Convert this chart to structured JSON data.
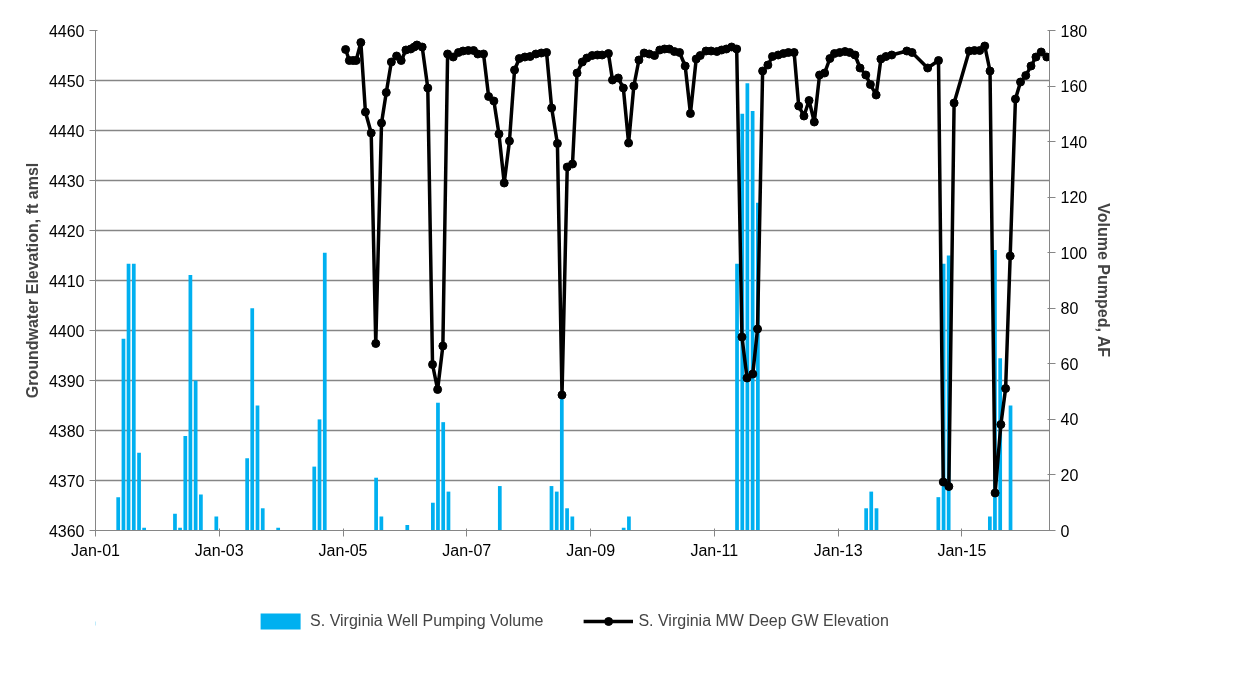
{
  "chart_data": {
    "type": "bar",
    "ylabel": "Groundwater Elevation, ft amsl",
    "y2label": "Volume Pumped, AF",
    "xlim": [
      "2001-01",
      "2016-06"
    ],
    "xticks": [
      {
        "value": "2001-01",
        "label": "Jan-01"
      },
      {
        "value": "2003-01",
        "label": "Jan-03"
      },
      {
        "value": "2005-01",
        "label": "Jan-05"
      },
      {
        "value": "2007-01",
        "label": "Jan-07"
      },
      {
        "value": "2009-01",
        "label": "Jan-09"
      },
      {
        "value": "2011-01",
        "label": "Jan-11"
      },
      {
        "value": "2013-01",
        "label": "Jan-13"
      },
      {
        "value": "2015-01",
        "label": "Jan-15"
      }
    ],
    "ylim": [
      4360,
      4460
    ],
    "yticks": [
      4360,
      4370,
      4380,
      4390,
      4400,
      4410,
      4420,
      4430,
      4440,
      4450,
      4460
    ],
    "y2lim": [
      0,
      180
    ],
    "y2ticks": [
      0,
      20,
      40,
      60,
      80,
      100,
      120,
      140,
      160,
      180
    ],
    "grid": "y",
    "legend": "bottom",
    "series": [
      {
        "name": "S. Virginia Well Pumping Volume",
        "axis": "y2",
        "color": "#00b0f0",
        "x": [
          "2001-05-15",
          "2001-06-15",
          "2001-07-15",
          "2001-08-15",
          "2001-09-15",
          "2001-10-15",
          "2002-04-15",
          "2002-05-15",
          "2002-06-15",
          "2002-07-15",
          "2002-08-15",
          "2002-09-15",
          "2002-12-15",
          "2003-06-15",
          "2003-07-15",
          "2003-08-15",
          "2003-09-15",
          "2003-12-15",
          "2004-07-15",
          "2004-08-15",
          "2004-09-15",
          "2005-07-15",
          "2005-08-15",
          "2006-01-15",
          "2006-06-15",
          "2006-07-15",
          "2006-08-15",
          "2006-09-15",
          "2007-07-15",
          "2008-05-15",
          "2008-06-15",
          "2008-07-15",
          "2008-08-15",
          "2008-09-15",
          "2009-07-15",
          "2009-08-15",
          "2011-05-15",
          "2011-06-15",
          "2011-07-15",
          "2011-08-15",
          "2011-09-15",
          "2013-06-15",
          "2013-07-15",
          "2013-08-15",
          "2014-08-15",
          "2014-09-15",
          "2014-10-15",
          "2015-06-15",
          "2015-07-15",
          "2015-08-15",
          "2015-09-15",
          "2015-10-15"
        ],
        "values": [
          12,
          69,
          96,
          96,
          28,
          1,
          6,
          1,
          34,
          92,
          54,
          13,
          5,
          26,
          80,
          45,
          8,
          1,
          23,
          40,
          100,
          19,
          5,
          2,
          10,
          46,
          39,
          14,
          16,
          16,
          14,
          48,
          8,
          5,
          1,
          5,
          96,
          150,
          161,
          151,
          118,
          8,
          14,
          8,
          12,
          96,
          99,
          5,
          101,
          62,
          null,
          45
        ]
      },
      {
        "name": "S. Virginia MW Deep GW Elevation",
        "type": "line",
        "color": "#000000",
        "marker": "circle",
        "line_style": "solid",
        "x": [
          "2005-01-16",
          "2005-02-07",
          "2005-03-01",
          "2005-03-19",
          "2005-04-16",
          "2005-05-13",
          "2005-06-16",
          "2005-07-13",
          "2005-08-16",
          "2005-09-13",
          "2005-10-13",
          "2005-11-13",
          "2005-12-10",
          "2006-01-07",
          "2006-02-04",
          "2006-02-25",
          "2006-03-13",
          "2006-04-13",
          "2006-05-16",
          "2006-06-13",
          "2006-07-13",
          "2006-08-13",
          "2006-09-10",
          "2006-10-13",
          "2006-11-13",
          "2006-12-10",
          "2007-01-10",
          "2007-02-10",
          "2007-03-07",
          "2007-04-10",
          "2007-05-10",
          "2007-06-10",
          "2007-07-10",
          "2007-08-10",
          "2007-09-10",
          "2007-10-10",
          "2007-11-07",
          "2007-12-10",
          "2008-01-10",
          "2008-02-13",
          "2008-03-16",
          "2008-04-16",
          "2008-05-16",
          "2008-06-19",
          "2008-07-16",
          "2008-08-16",
          "2008-09-16",
          "2008-10-13",
          "2008-11-13",
          "2008-12-10",
          "2009-01-10",
          "2009-02-10",
          "2009-03-10",
          "2009-04-16",
          "2009-05-10",
          "2009-06-13",
          "2009-07-13",
          "2009-08-13",
          "2009-09-13",
          "2009-10-13",
          "2009-11-13",
          "2009-12-13",
          "2010-01-13",
          "2010-02-13",
          "2010-03-13",
          "2010-04-10",
          "2010-05-10",
          "2010-06-10",
          "2010-07-13",
          "2010-08-13",
          "2010-09-16",
          "2010-10-10",
          "2010-11-13",
          "2010-12-13",
          "2011-01-16",
          "2011-02-13",
          "2011-03-13",
          "2011-04-13",
          "2011-05-13",
          "2011-06-13",
          "2011-07-13",
          "2011-08-16",
          "2011-09-13",
          "2011-10-13",
          "2011-11-13",
          "2011-12-10",
          "2012-01-13",
          "2012-02-13",
          "2012-03-13",
          "2012-04-16",
          "2012-05-13",
          "2012-06-13",
          "2012-07-13",
          "2012-08-13",
          "2012-09-13",
          "2012-10-13",
          "2012-11-13",
          "2012-12-10",
          "2013-01-10",
          "2013-02-10",
          "2013-03-10",
          "2013-04-10",
          "2013-05-10",
          "2013-06-13",
          "2013-07-10",
          "2013-08-13",
          "2013-09-10",
          "2013-10-10",
          "2013-11-13",
          "2014-02-10",
          "2014-03-13",
          "2014-06-13",
          "2014-08-16",
          "2014-09-13",
          "2014-10-16",
          "2014-11-16",
          "2015-02-13",
          "2015-03-16",
          "2015-04-16",
          "2015-05-16",
          "2015-06-16",
          "2015-07-16",
          "2015-08-19",
          "2015-09-16",
          "2015-10-13",
          "2015-11-13",
          "2015-12-13",
          "2016-01-13",
          "2016-02-13",
          "2016-03-13",
          "2016-04-13",
          "2016-05-16"
        ],
        "values": [
          4456.2,
          4454.0,
          4454.0,
          4454.0,
          4457.6,
          4443.7,
          4439.5,
          4397.4,
          4441.5,
          4447.6,
          4453.7,
          4454.9,
          4454.0,
          4456.1,
          4456.3,
          4456.7,
          4457.1,
          4456.7,
          4448.5,
          4393.2,
          4388.2,
          4396.9,
          4455.3,
          4454.7,
          4455.6,
          4455.9,
          4456.0,
          4456.0,
          4455.3,
          4455.3,
          4446.8,
          4445.9,
          4439.3,
          4429.5,
          4437.9,
          4452.1,
          4454.4,
          4454.7,
          4454.8,
          4455.3,
          4455.5,
          4455.6,
          4444.5,
          4437.4,
          4387.1,
          4432.7,
          4433.3,
          4451.5,
          4453.7,
          4454.5,
          4455.0,
          4455.1,
          4455.1,
          4455.4,
          4450.1,
          4450.5,
          4448.5,
          4437.5,
          4448.9,
          4454.1,
          4455.5,
          4455.3,
          4455.0,
          4456.1,
          4456.3,
          4456.3,
          4455.8,
          4455.6,
          4452.9,
          4443.4,
          4454.3,
          4455.0,
          4455.9,
          4455.9,
          4455.8,
          4456.1,
          4456.3,
          4456.7,
          4456.3,
          4398.7,
          4390.5,
          4391.3,
          4400.3,
          4451.9,
          4453.1,
          4454.8,
          4455.1,
          4455.4,
          4455.6,
          4455.6,
          4444.9,
          4442.9,
          4446.0,
          4441.7,
          4451.1,
          4451.5,
          4454.4,
          4455.4,
          4455.6,
          4455.8,
          4455.6,
          4455.1,
          4452.5,
          4451.1,
          4449.2,
          4447.1,
          4454.3,
          4454.8,
          4455.1,
          4455.9,
          4455.6,
          4452.5,
          4454.0,
          4369.7,
          4368.8,
          4445.5,
          4455.9,
          4456.0,
          4456.0,
          4456.9,
          4451.9,
          4367.5,
          4381.2,
          4388.4,
          4414.9,
          4446.3,
          4449.7,
          4451.0,
          4452.9,
          4454.7,
          4455.7,
          4454.7
        ]
      }
    ]
  }
}
